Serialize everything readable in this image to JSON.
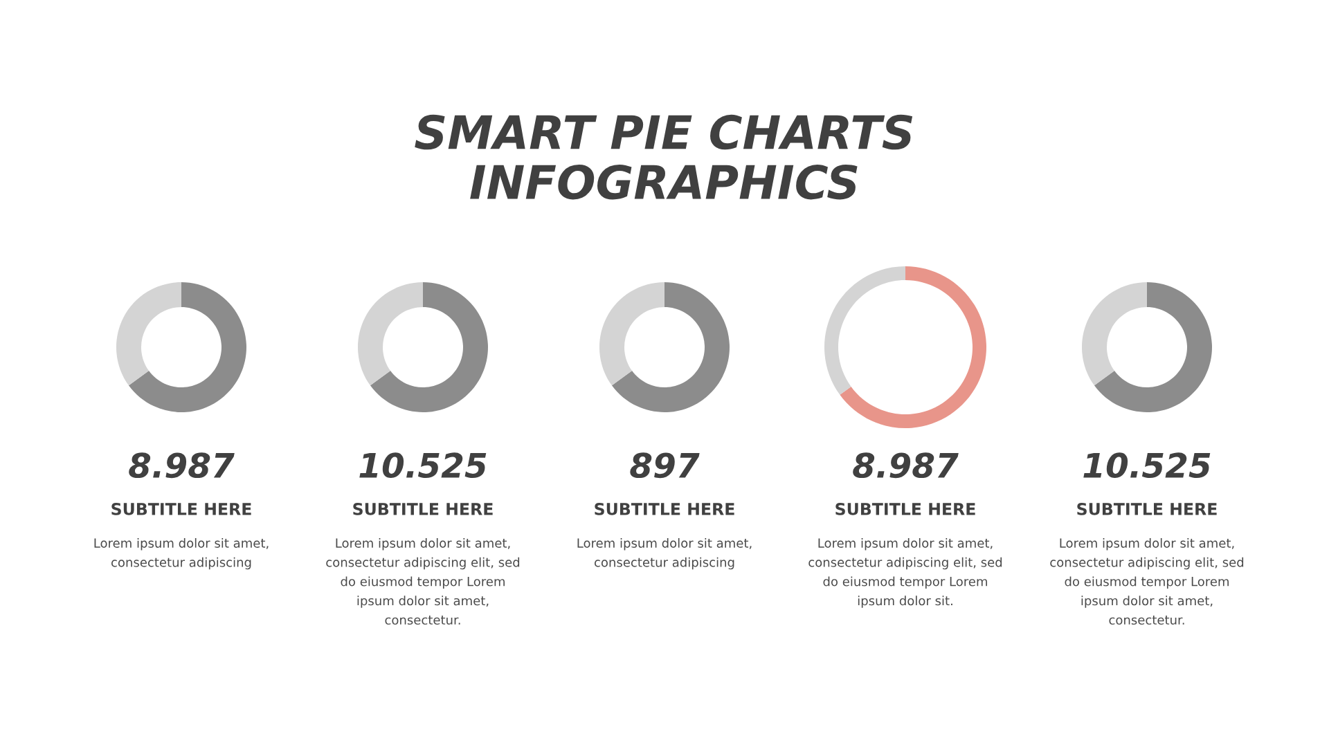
{
  "chart_data": [
    {
      "type": "other",
      "title": "SMART PIE CHARTS\nINFOGRAPHICS"
    },
    {
      "type": "donut",
      "title": "8.987",
      "subtitle": "SUBTITLE HERE",
      "annotations": [
        "Lorem ipsum dolor sit amet,\nconsectetur adipiscing"
      ],
      "categories": [
        null,
        null
      ],
      "values": [
        65,
        35
      ],
      "colors": [
        "#8c8c8c",
        "#d4d4d4"
      ]
    },
    {
      "type": "donut",
      "title": "10.525",
      "subtitle": "SUBTITLE HERE",
      "annotations": [
        "Lorem ipsum dolor sit amet,\nconsectetur adipiscing elit, sed\ndo eiusmod tempor Lorem\nipsum dolor sit amet,\nconsectetur."
      ],
      "categories": [
        null,
        null
      ],
      "values": [
        65,
        35
      ],
      "colors": [
        "#8c8c8c",
        "#d4d4d4"
      ]
    },
    {
      "type": "donut",
      "title": "897",
      "subtitle": "SUBTITLE HERE",
      "annotations": [
        "Lorem ipsum dolor sit amet,\nconsectetur adipiscing"
      ],
      "categories": [
        null,
        null
      ],
      "values": [
        65,
        35
      ],
      "colors": [
        "#8c8c8c",
        "#d4d4d4"
      ]
    },
    {
      "type": "donut",
      "title": "8.987",
      "subtitle": "SUBTITLE HERE",
      "annotations": [
        "Lorem ipsum dolor sit amet,\nconsectetur adipiscing elit, sed\ndo eiusmod tempor Lorem\nipsum dolor sit."
      ],
      "categories": [
        null,
        null
      ],
      "values": [
        65,
        35
      ],
      "colors": [
        "#e8958a",
        "#d4d4d4"
      ]
    },
    {
      "type": "donut",
      "title": "10.525",
      "subtitle": "SUBTITLE HERE",
      "annotations": [
        "Lorem ipsum dolor sit amet,\nconsectetur adipiscing elit, sed\ndo eiusmod tempor Lorem\nipsum dolor sit amet,\nconsectetur."
      ],
      "categories": [
        null,
        null
      ],
      "values": [
        65,
        35
      ],
      "colors": [
        "#8c8c8c",
        "#d4d4d4"
      ]
    }
  ]
}
